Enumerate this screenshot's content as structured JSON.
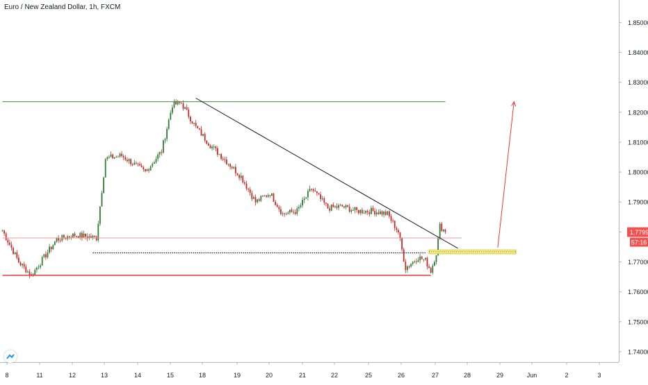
{
  "chart_data": {
    "type": "candlestick",
    "title": "Euro / New Zealand Dollar, 1h, FXCM",
    "y_axis": {
      "ticks": [
        "1.85000",
        "1.84000",
        "1.83000",
        "1.82000",
        "1.81000",
        "1.80000",
        "1.79000",
        "1.78000",
        "1.77000",
        "1.76000",
        "1.75000",
        "1.74000"
      ],
      "range": [
        1.7365,
        1.8575
      ]
    },
    "x_axis": {
      "ticks": [
        "8",
        "11",
        "12",
        "13",
        "14",
        "15",
        "18",
        "19",
        "20",
        "21",
        "22",
        "25",
        "26",
        "27",
        "28",
        "29",
        "Jun",
        "2",
        "3"
      ]
    },
    "last_price": {
      "value": "1.77993",
      "countdown": "57:16"
    },
    "colors": {
      "up": "#26a69a",
      "up_body": "#2e7d32",
      "down": "#ef5350",
      "down_body": "#c62828",
      "background": "#ffffff"
    },
    "anchors": [
      [
        0,
        1.7805
      ],
      [
        9,
        1.77
      ],
      [
        16,
        1.7655
      ],
      [
        30,
        1.7775
      ],
      [
        40,
        1.779
      ],
      [
        52,
        1.778
      ],
      [
        57,
        1.8045
      ],
      [
        66,
        1.8055
      ],
      [
        79,
        1.8
      ],
      [
        88,
        1.807
      ],
      [
        94,
        1.8225
      ],
      [
        99,
        1.823
      ],
      [
        107,
        1.815
      ],
      [
        115,
        1.809
      ],
      [
        125,
        1.803
      ],
      [
        132,
        1.7985
      ],
      [
        140,
        1.79
      ],
      [
        148,
        1.793
      ],
      [
        155,
        1.786
      ],
      [
        163,
        1.787
      ],
      [
        171,
        1.7945
      ],
      [
        180,
        1.788
      ],
      [
        188,
        1.7885
      ],
      [
        196,
        1.787
      ],
      [
        205,
        1.787
      ],
      [
        213,
        1.786
      ],
      [
        219,
        1.78
      ],
      [
        223,
        1.768
      ],
      [
        227,
        1.77
      ],
      [
        230,
        1.7715
      ],
      [
        234,
        1.7705
      ],
      [
        237,
        1.767
      ],
      [
        240,
        1.773
      ],
      [
        242,
        1.782
      ],
      [
        245,
        1.78
      ]
    ],
    "annotations": [
      {
        "type": "horizontal_line",
        "price": 1.8235,
        "color": "#388e3c",
        "from": 0,
        "to": 245
      },
      {
        "type": "horizontal_line",
        "price": 1.778,
        "color": "#ef9a9a",
        "from": 0,
        "to": 254
      },
      {
        "type": "horizontal_line",
        "price": 1.7655,
        "color": "#e53935",
        "from": 0,
        "to": 237
      },
      {
        "type": "dotted_line",
        "price": 1.773,
        "color": "#131722",
        "from": 50,
        "to": 234
      },
      {
        "type": "trend_line",
        "from": [
          107,
          1.8247
        ],
        "to": [
          252,
          1.7745
        ],
        "color": "#131722"
      },
      {
        "type": "zone",
        "from": 236,
        "to": 284,
        "price_top": 1.774,
        "price_bottom": 1.7727,
        "color": "#fff59d"
      },
      {
        "type": "arrow",
        "from": [
          274,
          1.7748
        ],
        "to": [
          283,
          1.8235
        ],
        "color": "#e53935"
      }
    ]
  }
}
